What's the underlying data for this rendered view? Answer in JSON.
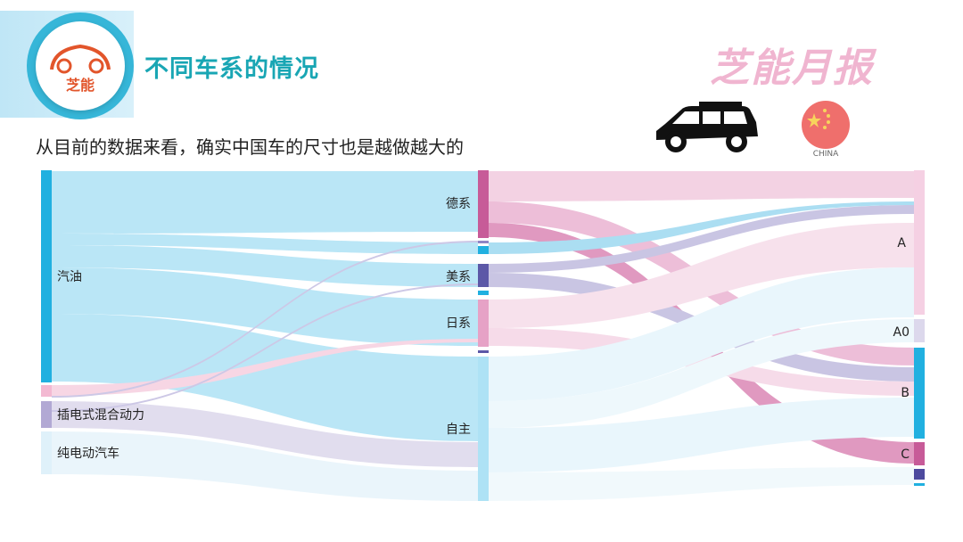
{
  "header": {
    "logo_text": "芝能",
    "title": "不同车系的情况",
    "brand": "芝能月报"
  },
  "subtitle": "从目前的数据来看，确实中国车的尺寸也是越做越大的",
  "badges": {
    "car_icon": "suv-car-icon",
    "flag_icon": "china-flag-icon",
    "flag_label": "CHINA"
  },
  "sankey": {
    "left_nodes": [
      {
        "label": "汽油",
        "color": "#21b0e0"
      },
      {
        "label": "",
        "color": "#f3b9d2"
      },
      {
        "label": "插电式混合动力",
        "color": "#b2a9d4"
      },
      {
        "label": "纯电动汽车",
        "color": "#dff1fa"
      }
    ],
    "middle_nodes": [
      {
        "label": "德系",
        "color": "#c75b98"
      },
      {
        "label": "",
        "color": "#8f86c5"
      },
      {
        "label": "",
        "color": "#21b0e0"
      },
      {
        "label": "美系",
        "color": "#5c58a7"
      },
      {
        "label": "",
        "color": "#21b0e0"
      },
      {
        "label": "日系",
        "color": "#e6a2c6"
      },
      {
        "label": "",
        "color": "#5c58a7"
      },
      {
        "label": "自主",
        "color": "#aee2f5"
      }
    ],
    "right_nodes": [
      {
        "label": "A",
        "color": "#f5d0e3"
      },
      {
        "label": "A0",
        "color": "#dcd8ec"
      },
      {
        "label": "B",
        "color": "#21b0e0"
      },
      {
        "label": "C",
        "color": "#c75b98"
      },
      {
        "label": "",
        "color": "#4d4a9e"
      },
      {
        "label": "",
        "color": "#21b0e0"
      }
    ]
  }
}
